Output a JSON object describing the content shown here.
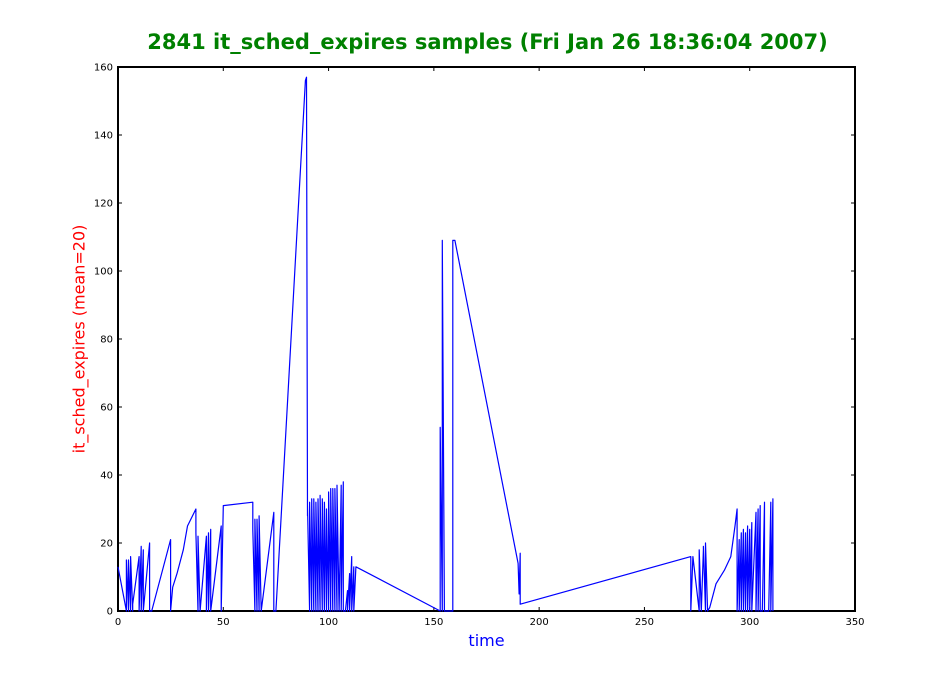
{
  "chart_data": {
    "type": "line",
    "title": "2841 it_sched_expires samples (Fri Jan 26 18:36:04 2007)",
    "xlabel": "time",
    "ylabel": "it_sched_expires (mean=20)",
    "xlim": [
      0,
      350
    ],
    "ylim": [
      0,
      160
    ],
    "xticks": [
      0,
      50,
      100,
      150,
      200,
      250,
      300,
      350
    ],
    "yticks": [
      0,
      20,
      40,
      60,
      80,
      100,
      120,
      140,
      160
    ],
    "grid": false,
    "colors": {
      "title": "#008000",
      "xlabel": "#0000ff",
      "ylabel": "#ff0000",
      "line": "#0000ff"
    },
    "series": [
      {
        "x": [
          0,
          4,
          4,
          5,
          5,
          6,
          6,
          7,
          7,
          10,
          10,
          11,
          11,
          12,
          12,
          15,
          15,
          16,
          16,
          25,
          25,
          26,
          28,
          31,
          33,
          37,
          37,
          38,
          38,
          39,
          39,
          42,
          42,
          43,
          43,
          44,
          44,
          49,
          49,
          50,
          50,
          64,
          64,
          65,
          65,
          66,
          66,
          67,
          67,
          68,
          68,
          74,
          74,
          75,
          75,
          89,
          89.5,
          90,
          90,
          91,
          91,
          92,
          92,
          93,
          93,
          94,
          94,
          95,
          95,
          96,
          96,
          97,
          97,
          98,
          98,
          99,
          99,
          100,
          100,
          101,
          101,
          102,
          102,
          103,
          103,
          104,
          104,
          105,
          105,
          106,
          106,
          107,
          107,
          108,
          108,
          109,
          109,
          110,
          110,
          111,
          111,
          112,
          112,
          113,
          153,
          153,
          154,
          154,
          155,
          158,
          159,
          159,
          160,
          190,
          190.5,
          191,
          191,
          272,
          272,
          273,
          276,
          276,
          277,
          278,
          278,
          279,
          279,
          280,
          281,
          284,
          288,
          291,
          293,
          294,
          294,
          295,
          295,
          296,
          296,
          297,
          297,
          298,
          298,
          299,
          299,
          300,
          300,
          301,
          301,
          303,
          303,
          304,
          304,
          305,
          305,
          306,
          306,
          307,
          307,
          309,
          309,
          310,
          310,
          311,
          311
        ],
        "y": [
          13,
          0,
          15,
          0,
          15,
          0,
          16,
          0,
          2,
          16,
          0,
          19,
          0,
          18,
          0,
          20,
          0,
          0,
          0,
          21,
          0,
          7,
          11,
          18,
          25,
          30,
          23,
          0,
          22,
          0,
          0,
          22,
          0,
          23,
          0,
          24,
          0,
          25,
          0,
          31,
          31,
          32,
          24,
          0,
          27,
          0,
          27,
          0,
          28,
          0,
          0,
          29,
          0,
          0,
          0,
          156,
          157,
          28,
          31,
          0,
          32,
          0,
          33,
          0,
          33,
          0,
          32,
          0,
          33,
          0,
          34,
          0,
          33,
          0,
          32,
          0,
          30,
          0,
          35,
          0,
          36,
          0,
          36,
          0,
          36,
          0,
          37,
          0,
          0,
          37,
          0,
          38,
          0,
          0,
          0,
          6,
          0,
          11,
          0,
          16,
          0,
          13,
          0,
          13,
          0,
          54,
          0,
          109,
          0,
          0,
          0,
          109,
          109,
          14,
          5,
          17,
          2,
          16,
          0,
          16,
          0,
          18,
          0,
          18,
          19,
          0,
          20,
          0,
          1,
          8,
          12,
          16,
          25,
          30,
          0,
          21,
          0,
          23,
          0,
          24,
          0,
          23,
          0,
          25,
          0,
          24,
          0,
          26,
          0,
          29,
          0,
          30,
          0,
          31,
          0,
          0,
          0,
          32,
          0,
          0,
          0,
          32,
          0,
          33,
          0
        ]
      }
    ]
  }
}
